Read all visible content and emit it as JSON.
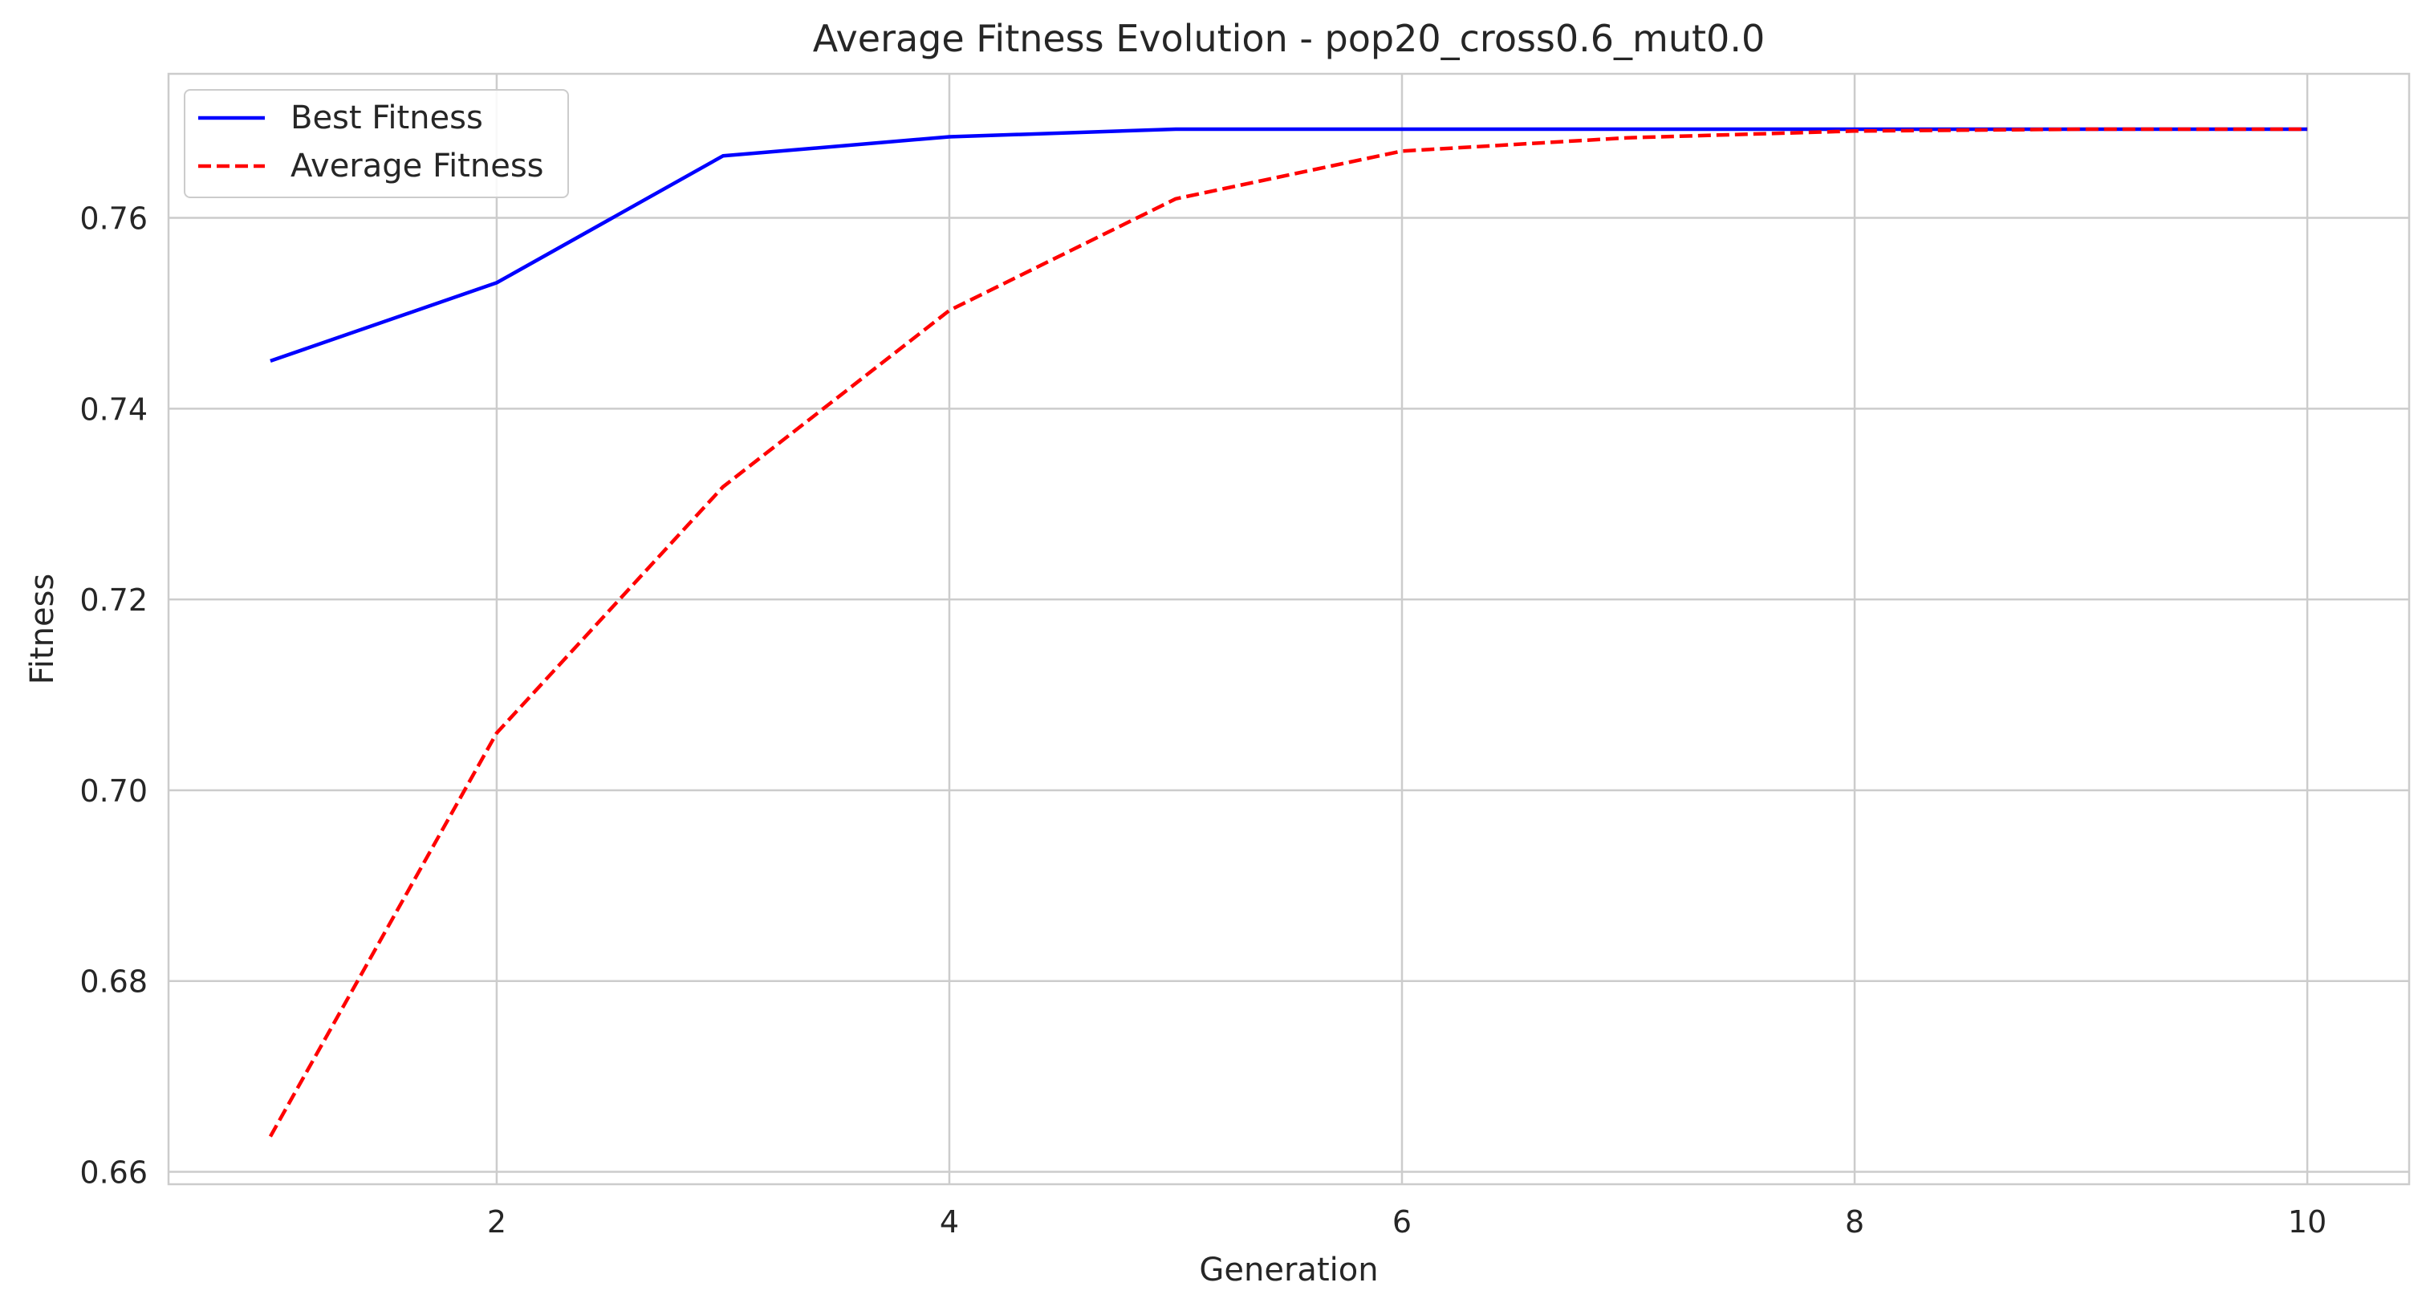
{
  "chart_data": {
    "type": "line",
    "title": "Average Fitness Evolution - pop20_cross0.6_mut0.0",
    "xlabel": "Generation",
    "ylabel": "Fitness",
    "x": [
      1,
      2,
      3,
      4,
      5,
      6,
      7,
      8,
      9,
      10
    ],
    "xlim": [
      0.55,
      10.45
    ],
    "ylim": [
      0.6587,
      0.7751
    ],
    "xticks": [
      2,
      4,
      6,
      8,
      10
    ],
    "yticks": [
      0.66,
      0.68,
      0.7,
      0.72,
      0.74,
      0.76
    ],
    "xtick_labels": [
      "2",
      "4",
      "6",
      "8",
      "10"
    ],
    "ytick_labels": [
      "0.66",
      "0.68",
      "0.70",
      "0.72",
      "0.74",
      "0.76"
    ],
    "grid": true,
    "legend_position": "top-left",
    "series": [
      {
        "name": "Best Fitness",
        "color": "#0000ff",
        "style": "solid",
        "values": [
          0.745,
          0.7532,
          0.7665,
          0.7685,
          0.7693,
          0.7693,
          0.7693,
          0.7693,
          0.7693,
          0.7693
        ]
      },
      {
        "name": "Average Fitness",
        "color": "#ff0000",
        "style": "dashed",
        "values": [
          0.6637,
          0.706,
          0.7318,
          0.7503,
          0.762,
          0.767,
          0.7684,
          0.7691,
          0.7693,
          0.7693
        ]
      }
    ]
  }
}
